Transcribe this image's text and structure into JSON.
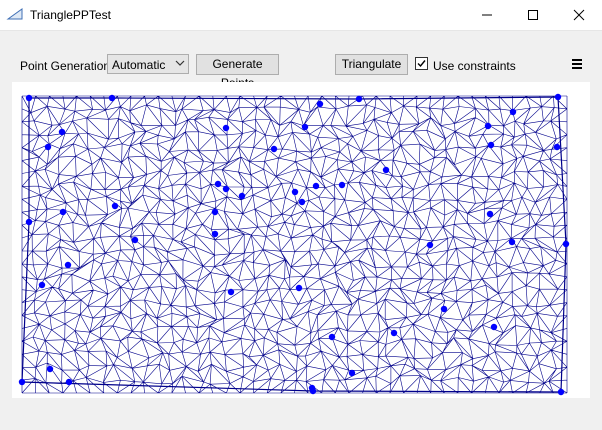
{
  "window": {
    "title": "TrianglePPTest",
    "app_icon": "triangle-ruler-icon"
  },
  "window_controls": {
    "minimize_icon": "minimize-icon",
    "maximize_icon": "maximize-icon",
    "close_icon": "close-icon"
  },
  "toolbar": {
    "point_generation_label": "Point Generation",
    "point_generation_value": "Automatic",
    "generate_points_label": "Generate Points",
    "triangulate_label": "Triangulate",
    "use_constraints_label": "Use constraints",
    "use_constraints_checked": true,
    "menu_icon": "hamburger-menu-icon"
  },
  "colors": {
    "mesh": "#00008b",
    "points": "#0000ff"
  }
}
